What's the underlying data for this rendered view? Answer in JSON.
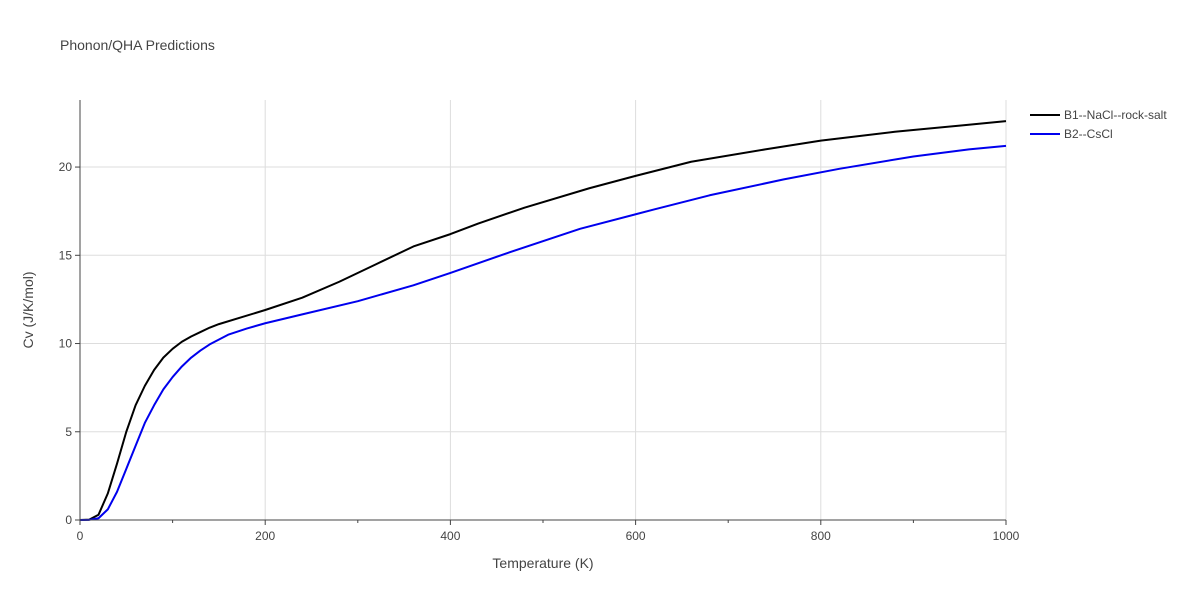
{
  "chart_data": {
    "type": "line",
    "title": "Phonon/QHA Predictions",
    "xlabel": "Temperature (K)",
    "ylabel": "Cv (J/K/mol)",
    "xlim": [
      0,
      1000
    ],
    "ylim": [
      0,
      23.8
    ],
    "x_ticks": [
      0,
      200,
      400,
      600,
      800,
      1000
    ],
    "y_ticks": [
      0,
      5,
      10,
      15,
      20
    ],
    "grid": true,
    "legend": "top-right, outside plot",
    "series": [
      {
        "name": "B1--NaCl--rock-salt",
        "color": "#000000",
        "x": [
          0,
          10,
          20,
          30,
          40,
          50,
          60,
          70,
          80,
          90,
          100,
          110,
          120,
          130,
          140,
          150,
          175,
          200,
          240,
          280,
          320,
          360,
          400,
          430,
          480,
          550,
          600,
          660,
          740,
          800,
          880,
          950,
          1000
        ],
        "y": [
          0,
          0.02,
          0.3,
          1.5,
          3.2,
          5.0,
          6.5,
          7.6,
          8.5,
          9.2,
          9.7,
          10.1,
          10.4,
          10.65,
          10.9,
          11.1,
          11.5,
          11.9,
          12.6,
          13.5,
          14.5,
          15.5,
          16.2,
          16.8,
          17.7,
          18.8,
          19.5,
          20.3,
          21.0,
          21.5,
          22.0,
          22.35,
          22.6
        ]
      },
      {
        "name": "B2--CsCl",
        "color": "#0000ee",
        "x": [
          0,
          10,
          20,
          30,
          40,
          50,
          60,
          70,
          80,
          90,
          100,
          110,
          120,
          130,
          140,
          160,
          180,
          200,
          240,
          300,
          360,
          400,
          460,
          540,
          620,
          680,
          760,
          820,
          900,
          960,
          1000
        ],
        "y": [
          0,
          0.01,
          0.1,
          0.6,
          1.6,
          2.9,
          4.2,
          5.5,
          6.5,
          7.4,
          8.1,
          8.7,
          9.2,
          9.6,
          9.95,
          10.5,
          10.85,
          11.15,
          11.65,
          12.4,
          13.3,
          14.0,
          15.1,
          16.5,
          17.6,
          18.4,
          19.3,
          19.9,
          20.6,
          21.0,
          21.2
        ]
      }
    ]
  }
}
